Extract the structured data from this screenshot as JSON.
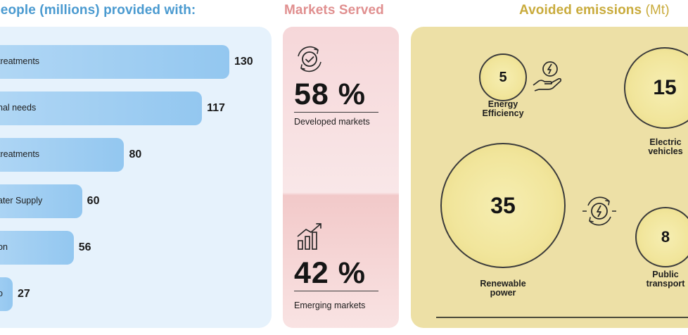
{
  "people": {
    "title": "People (millions) provided with:"
  },
  "markets": {
    "title": "Markets Served",
    "developed": {
      "pct": "58 %",
      "label": "Developed markets"
    },
    "emerging": {
      "pct": "42 %",
      "label": "Emerging markets"
    }
  },
  "emissions": {
    "title": "Avoided emissions",
    "unit": "(Mt)"
  },
  "colors": {
    "bar": "#93c7f0",
    "people_panel": "#e6f2fc",
    "markets_panel": "#f6d7d9",
    "emissions_panel": "#ede0a6",
    "bubble": "#f1e59b"
  },
  "chart_data": [
    {
      "type": "bar",
      "orientation": "horizontal",
      "title": "People (millions) provided with:",
      "categories": [
        "treatments",
        "nal needs",
        "treatments",
        "ater Supply",
        "on",
        "o"
      ],
      "values": [
        130,
        117,
        80,
        60,
        56,
        27
      ],
      "value_labels": [
        "130",
        "117",
        "80",
        "60",
        "56",
        "27"
      ]
    },
    {
      "type": "bubble",
      "title": "Avoided emissions (Mt)",
      "categories": [
        "Energy Efficiency",
        "Electric vehicles",
        "Renewable power",
        "Public transport"
      ],
      "labels": [
        "Energy\nEfficiency",
        "Electric\nvehicles",
        "Renewable\npower",
        "Public\ntransport"
      ],
      "values": [
        5,
        15,
        35,
        8
      ],
      "value_labels": [
        "5",
        "15",
        "35",
        "8"
      ]
    }
  ]
}
